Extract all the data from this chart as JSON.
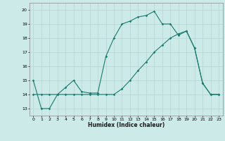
{
  "title": "",
  "xlabel": "Humidex (Indice chaleur)",
  "ylabel": "",
  "bg_color": "#cceae8",
  "grid_color": "#b8d8d6",
  "line_color": "#1a7a6e",
  "line1_x": [
    0,
    1,
    2,
    3,
    4,
    5,
    6,
    7,
    8,
    9,
    10,
    11,
    12,
    13,
    14,
    15,
    16,
    17,
    18,
    19,
    20,
    21,
    22,
    23
  ],
  "line1_y": [
    15,
    13,
    13,
    14,
    14.5,
    15,
    14.2,
    14.1,
    14.1,
    16.7,
    18,
    19,
    19.2,
    19.5,
    19.6,
    19.9,
    19.0,
    19.0,
    18.2,
    18.5,
    17.3,
    14.8,
    14.0,
    14.0
  ],
  "line2_x": [
    0,
    1,
    2,
    3,
    4,
    5,
    6,
    7,
    8,
    9,
    10,
    11,
    12,
    13,
    14,
    15,
    16,
    17,
    18,
    19,
    20,
    21,
    22,
    23
  ],
  "line2_y": [
    14,
    14,
    14,
    14,
    14,
    14,
    14,
    14,
    14,
    14,
    14,
    14.4,
    15.0,
    15.7,
    16.3,
    17.0,
    17.5,
    18.0,
    18.3,
    18.5,
    17.3,
    14.8,
    14.0,
    14.0
  ],
  "ylim": [
    12.5,
    20.5
  ],
  "xlim": [
    -0.5,
    23.5
  ],
  "yticks": [
    13,
    14,
    15,
    16,
    17,
    18,
    19,
    20
  ],
  "xticks": [
    0,
    1,
    2,
    3,
    4,
    5,
    6,
    7,
    8,
    9,
    10,
    11,
    12,
    13,
    14,
    15,
    16,
    17,
    18,
    19,
    20,
    21,
    22,
    23
  ]
}
